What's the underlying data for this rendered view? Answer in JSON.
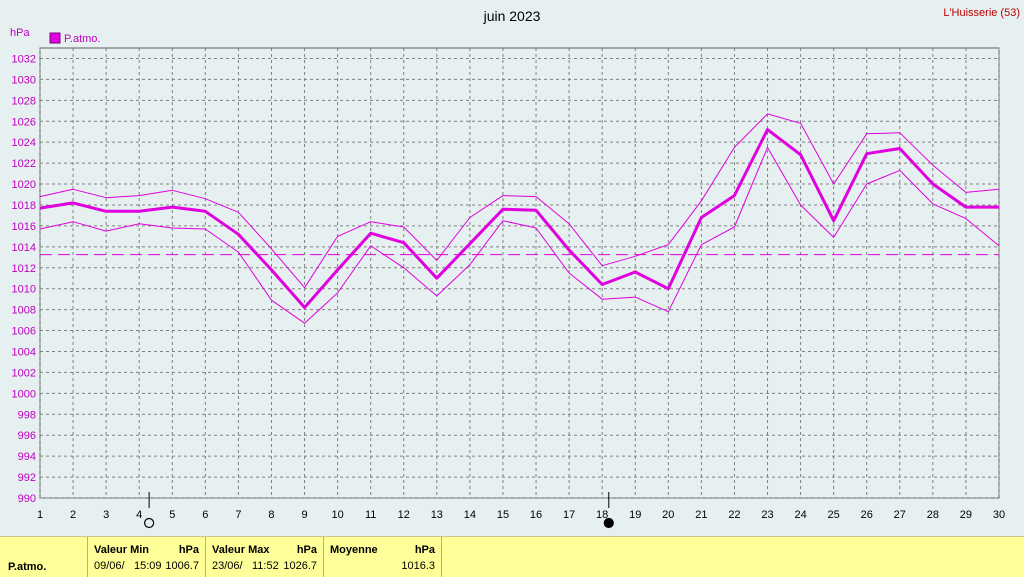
{
  "title": "juin 2023",
  "station": "L'Huisserie (53)",
  "y_unit": "hPa",
  "legend_label": "P.atmo.",
  "colors": {
    "series": "#e000e0",
    "band": "#e000e0",
    "grid": "#808080",
    "background": "#e6f0f0",
    "footer": "#ffff99"
  },
  "chart_data": {
    "type": "line",
    "title": "juin 2023",
    "ylabel": "hPa",
    "ylim": [
      990,
      1033
    ],
    "yticks": [
      990,
      992,
      994,
      996,
      998,
      1000,
      1002,
      1004,
      1006,
      1008,
      1010,
      1012,
      1014,
      1016,
      1018,
      1020,
      1022,
      1024,
      1026,
      1028,
      1030,
      1032
    ],
    "x": [
      1,
      2,
      3,
      4,
      5,
      6,
      7,
      8,
      9,
      10,
      11,
      12,
      13,
      14,
      15,
      16,
      17,
      18,
      19,
      20,
      21,
      22,
      23,
      24,
      25,
      26,
      27,
      28,
      29,
      30
    ],
    "series": [
      {
        "name": "P.atmo.",
        "role": "mean",
        "values": [
          1017.7,
          1018.2,
          1017.4,
          1017.4,
          1017.8,
          1017.4,
          1015.2,
          1011.8,
          1008.2,
          1011.8,
          1015.3,
          1014.4,
          1011.0,
          1014.3,
          1017.6,
          1017.5,
          1013.7,
          1010.4,
          1011.6,
          1010.0,
          1016.8,
          1018.9,
          1025.2,
          1022.8,
          1016.5,
          1022.9,
          1023.4,
          1020.0,
          1017.8,
          1017.8
        ]
      },
      {
        "role": "max",
        "values": [
          1018.8,
          1019.5,
          1018.7,
          1018.9,
          1019.4,
          1018.6,
          1017.3,
          1013.8,
          1010.1,
          1015.0,
          1016.4,
          1015.9,
          1012.7,
          1016.8,
          1018.9,
          1018.8,
          1016.2,
          1012.2,
          1013.1,
          1014.2,
          1018.4,
          1023.5,
          1026.7,
          1025.8,
          1020.0,
          1024.8,
          1024.9,
          1021.8,
          1019.2,
          1019.5
        ]
      },
      {
        "role": "min",
        "values": [
          1015.7,
          1016.4,
          1015.5,
          1016.2,
          1015.8,
          1015.7,
          1013.5,
          1008.9,
          1006.7,
          1009.6,
          1014.1,
          1012.0,
          1009.3,
          1012.3,
          1016.5,
          1015.8,
          1011.5,
          1009.0,
          1009.2,
          1007.8,
          1014.2,
          1015.9,
          1023.5,
          1018.0,
          1014.9,
          1020.0,
          1021.3,
          1018.1,
          1016.7,
          1014.1
        ]
      }
    ],
    "reference_line": 1013.25,
    "moon_phases": [
      {
        "day": 4.3,
        "phase": "full"
      },
      {
        "day": 18.2,
        "phase": "new"
      }
    ],
    "grid": true,
    "legend": "top-left"
  },
  "footer": {
    "row_label": "P.atmo.",
    "min": {
      "header": "Valeur Min",
      "unit": "hPa",
      "date": "09/06/",
      "time": "15:09",
      "value": "1006.7"
    },
    "max": {
      "header": "Valeur Max",
      "unit": "hPa",
      "date": "23/06/",
      "time": "11:52",
      "value": "1026.7"
    },
    "mean": {
      "header": "Moyenne",
      "unit": "hPa",
      "value": "1016.3"
    }
  }
}
